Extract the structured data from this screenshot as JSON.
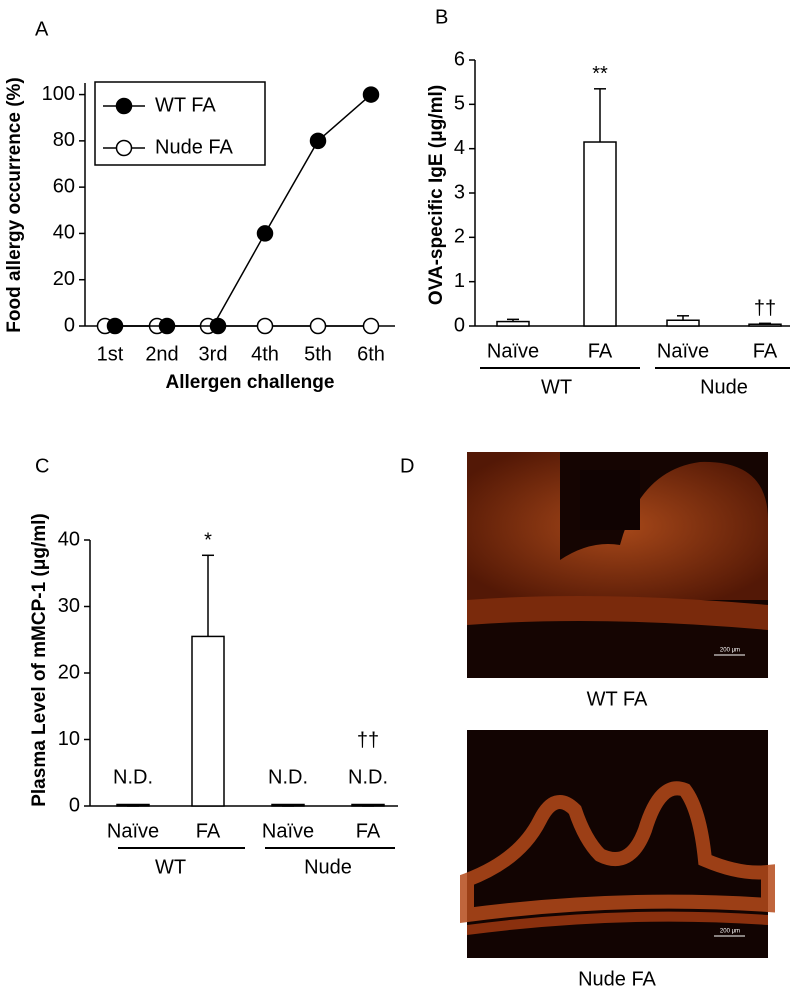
{
  "chart_data": [
    {
      "type": "line",
      "panel": "A",
      "ylabel": "Food allergy occurrence (%)",
      "xlabel": "Allergen challenge",
      "categories": [
        "1st",
        "2nd",
        "3rd",
        "4th",
        "5th",
        "6th"
      ],
      "series": [
        {
          "name": "WT FA",
          "color": "#000000",
          "values": [
            0,
            0,
            0,
            40,
            80,
            100
          ]
        },
        {
          "name": "Nude FA",
          "color": "#ffffff",
          "values": [
            0,
            0,
            0,
            0,
            0,
            0
          ]
        }
      ],
      "ylim": [
        0,
        105
      ],
      "yticks": [
        0,
        20,
        40,
        60,
        80,
        100
      ],
      "legend": "upper-left"
    },
    {
      "type": "bar",
      "panel": "B",
      "ylabel": "OVA-specific IgE (μg/ml)",
      "categories": [
        "Naïve",
        "FA",
        "Naïve",
        "FA"
      ],
      "groups": [
        "WT",
        "Nude"
      ],
      "values": [
        0.1,
        4.15,
        0.13,
        0.04
      ],
      "errors": [
        0.05,
        1.2,
        0.1,
        0.02
      ],
      "significance": [
        null,
        "**",
        null,
        "††"
      ],
      "notes": [
        null,
        null,
        null,
        null
      ],
      "color": "#ffffff",
      "ylim": [
        0,
        6
      ],
      "yticks": [
        0,
        1,
        2,
        3,
        4,
        5,
        6
      ]
    },
    {
      "type": "bar",
      "panel": "C",
      "ylabel": "Plasma Level of mMCP-1 (μg/ml)",
      "categories": [
        "Naïve",
        "FA",
        "Naïve",
        "FA"
      ],
      "groups": [
        "WT",
        "Nude"
      ],
      "values": [
        0,
        25.5,
        0,
        0
      ],
      "errors": [
        0,
        12.2,
        0,
        0
      ],
      "significance": [
        null,
        "*",
        null,
        "††"
      ],
      "notes": [
        "N.D.",
        null,
        "N.D.",
        "N.D."
      ],
      "color": "#ffffff",
      "ylim": [
        0,
        40
      ],
      "yticks": [
        0,
        10,
        20,
        30,
        40
      ]
    }
  ],
  "images": {
    "panel": "D",
    "items": [
      {
        "caption": "WT FA",
        "scale_bar": "200 μm"
      },
      {
        "caption": "Nude FA",
        "scale_bar": "200 μm"
      }
    ]
  }
}
